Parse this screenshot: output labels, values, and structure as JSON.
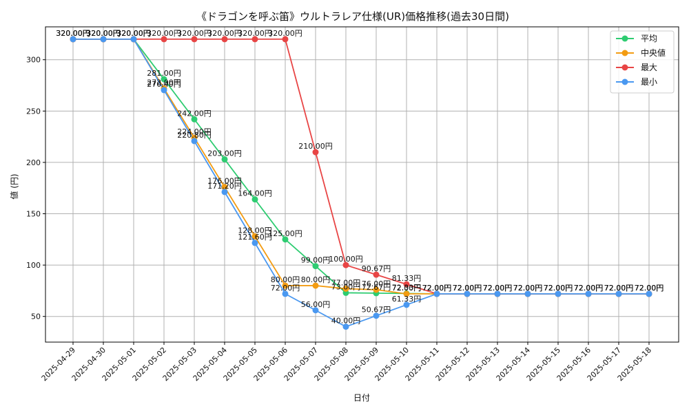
{
  "chart_data": {
    "type": "line",
    "title": "《ドラゴンを呼ぶ笛》ウルトラレア仕様(UR)価格推移(過去30日間)",
    "xlabel": "日付",
    "ylabel": "値 (円)",
    "ylim": [
      25,
      332
    ],
    "yticks": [
      50,
      100,
      150,
      200,
      250,
      300
    ],
    "grid": true,
    "legend_position": "top-right",
    "categories": [
      "2025-04-29",
      "2025-04-30",
      "2025-05-01",
      "2025-05-02",
      "2025-05-03",
      "2025-05-04",
      "2025-05-05",
      "2025-05-06",
      "2025-05-07",
      "2025-05-08",
      "2025-05-09",
      "2025-05-10",
      "2025-05-11",
      "2025-05-12",
      "2025-05-13",
      "2025-05-14",
      "2025-05-15",
      "2025-05-16",
      "2025-05-17",
      "2025-05-18"
    ],
    "series": [
      {
        "name": "平均",
        "color": "#2ecc71",
        "values": [
          320.0,
          320.0,
          320.0,
          281.0,
          242.0,
          203.0,
          164.0,
          125.0,
          99.0,
          73.0,
          72.67,
          72.33,
          72.0,
          72.0,
          72.0,
          72.0,
          72.0,
          72.0,
          72.0,
          72.0
        ]
      },
      {
        "name": "中央値",
        "color": "#f39c12",
        "values": [
          320.0,
          320.0,
          320.0,
          272.0,
          224.0,
          176.0,
          128.0,
          80.0,
          80.0,
          77.0,
          76.0,
          72.0,
          72.0,
          72.0,
          72.0,
          72.0,
          72.0,
          72.0,
          72.0,
          72.0
        ]
      },
      {
        "name": "最大",
        "color": "#e84545",
        "values": [
          320.0,
          320.0,
          320.0,
          320.0,
          320.0,
          320.0,
          320.0,
          320.0,
          210.0,
          100.0,
          90.67,
          81.33,
          72.0,
          72.0,
          72.0,
          72.0,
          72.0,
          72.0,
          72.0,
          72.0
        ]
      },
      {
        "name": "最小",
        "color": "#4a98f0",
        "values": [
          320.0,
          320.0,
          320.0,
          270.4,
          220.8,
          171.2,
          121.6,
          72.0,
          56.0,
          40.0,
          50.67,
          61.33,
          72.0,
          72.0,
          72.0,
          72.0,
          72.0,
          72.0,
          72.0,
          72.0
        ]
      }
    ],
    "value_label_suffix": "円"
  }
}
